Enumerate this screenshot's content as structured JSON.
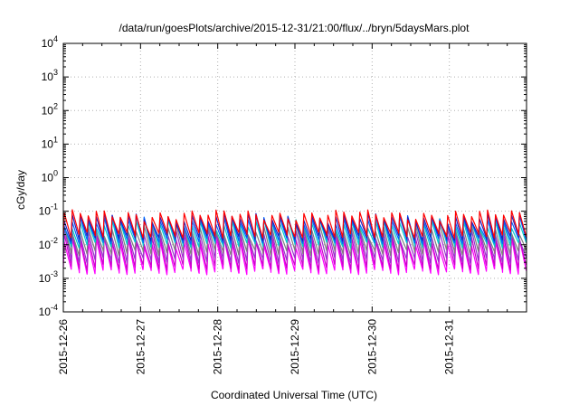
{
  "chart_data": {
    "type": "line",
    "title": "/data/run/goesPlots/archive/2015-12-31/21:00/flux/../bryn/5daysMars.plot",
    "xlabel": "Coordinated Universal Time (UTC)",
    "ylabel": "cGy/day",
    "y_scale": "log",
    "grid": true,
    "ylim_exponents": [
      -4,
      4
    ],
    "y_tick_exponents": [
      -4,
      -3,
      -2,
      -1,
      0,
      1,
      2,
      3,
      4
    ],
    "y_tick_base": "10",
    "x_tick_labels": [
      "2015-12-26",
      "2015-12-27",
      "2015-12-28",
      "2015-12-29",
      "2015-12-30",
      "2015-12-31"
    ],
    "x_range_days": 6,
    "sawtooth_cycles": 58,
    "series": [
      {
        "color": "#ff00ff",
        "peak": 0.012,
        "trough": 0.0016
      },
      {
        "color": "#cc00cc",
        "peak": 0.016,
        "trough": 0.0022
      },
      {
        "color": "#9933cc",
        "peak": 0.022,
        "trough": 0.0035
      },
      {
        "color": "#7f7f7f",
        "peak": 0.03,
        "trough": 0.006
      },
      {
        "color": "#00cccc",
        "peak": 0.045,
        "trough": 0.01
      },
      {
        "color": "#0066ff",
        "peak": 0.055,
        "trough": 0.013
      },
      {
        "color": "#2020c0",
        "peak": 0.065,
        "trough": 0.016
      },
      {
        "color": "#ff0000",
        "peak": 0.08,
        "trough": 0.02
      }
    ]
  }
}
